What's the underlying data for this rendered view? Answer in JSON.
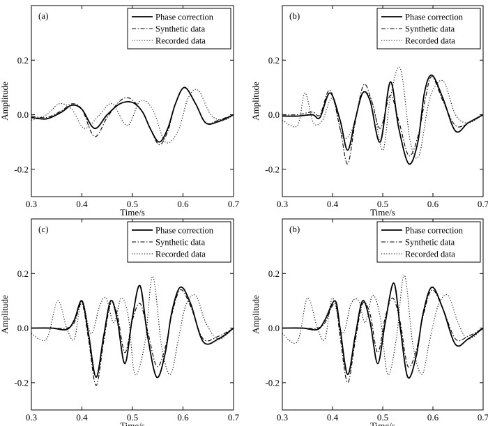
{
  "chart_data": [
    {
      "type": "line",
      "panel_label": "(a)",
      "xlabel": "Time/s",
      "ylabel": "Amplitude",
      "xlim": [
        0.3,
        0.7
      ],
      "ylim": [
        -0.3,
        0.4
      ],
      "xticks": [
        0.3,
        0.4,
        0.5,
        0.6,
        0.7
      ],
      "xtick_labels": [
        "0.3",
        "0.4",
        "0.5",
        "0.6",
        "0.7"
      ],
      "yticks": [
        -0.2,
        0.0,
        0.2
      ],
      "ytick_labels": [
        "-0.2",
        "0.0",
        "0.2"
      ],
      "legend_position": "top-right",
      "series": [
        {
          "name": "Phase correction",
          "style": "solid",
          "x": [
            0.3,
            0.33,
            0.36,
            0.38,
            0.4,
            0.425,
            0.45,
            0.475,
            0.5,
            0.52,
            0.535,
            0.553,
            0.57,
            0.585,
            0.603,
            0.625,
            0.645,
            0.67,
            0.7
          ],
          "y": [
            -0.01,
            -0.015,
            0.01,
            0.035,
            0.02,
            -0.05,
            0.0,
            0.04,
            0.045,
            0.01,
            -0.05,
            -0.1,
            -0.05,
            0.04,
            0.1,
            0.04,
            -0.03,
            -0.025,
            0.0
          ]
        },
        {
          "name": "Synthetic data",
          "style": "dashdot",
          "x": [
            0.3,
            0.33,
            0.36,
            0.38,
            0.4,
            0.425,
            0.45,
            0.475,
            0.495,
            0.52,
            0.535,
            0.553,
            0.57,
            0.585,
            0.603,
            0.625,
            0.645,
            0.67,
            0.7
          ],
          "y": [
            -0.005,
            -0.01,
            0.015,
            0.04,
            0.02,
            -0.08,
            -0.01,
            0.05,
            0.06,
            0.01,
            -0.05,
            -0.11,
            -0.06,
            0.04,
            0.1,
            0.04,
            -0.03,
            -0.02,
            0.0
          ]
        },
        {
          "name": "Recorded data",
          "style": "dotted",
          "x": [
            0.3,
            0.33,
            0.355,
            0.38,
            0.405,
            0.435,
            0.46,
            0.49,
            0.515,
            0.54,
            0.565,
            0.59,
            0.61,
            0.63,
            0.655,
            0.68,
            0.7
          ],
          "y": [
            -0.02,
            0.0,
            0.04,
            0.02,
            -0.05,
            0.0,
            0.04,
            -0.04,
            0.05,
            0.02,
            -0.1,
            -0.06,
            0.06,
            0.09,
            0.0,
            -0.02,
            0.0
          ]
        }
      ]
    },
    {
      "type": "line",
      "panel_label": "(b)",
      "xlabel": "Time/s",
      "ylabel": "Amplitude",
      "xlim": [
        0.3,
        0.7
      ],
      "ylim": [
        -0.3,
        0.4
      ],
      "xticks": [
        0.3,
        0.4,
        0.5,
        0.6,
        0.7
      ],
      "xtick_labels": [
        "0.3",
        "0.4",
        "0.5",
        "0.6",
        "0.7"
      ],
      "yticks": [
        -0.2,
        0.0,
        0.2
      ],
      "ytick_labels": [
        "-0.2",
        "0.0",
        "0.2"
      ],
      "legend_position": "top-right",
      "series": [
        {
          "name": "Phase correction",
          "style": "solid",
          "x": [
            0.3,
            0.33,
            0.36,
            0.375,
            0.395,
            0.415,
            0.43,
            0.445,
            0.46,
            0.475,
            0.495,
            0.515,
            0.532,
            0.552,
            0.57,
            0.583,
            0.598,
            0.62,
            0.645,
            0.67,
            0.7
          ],
          "y": [
            -0.005,
            -0.005,
            0.0,
            -0.01,
            0.08,
            -0.02,
            -0.13,
            -0.02,
            0.08,
            0.05,
            -0.1,
            0.12,
            -0.05,
            -0.18,
            -0.1,
            0.08,
            0.145,
            0.06,
            -0.06,
            -0.03,
            0.0
          ]
        },
        {
          "name": "Synthetic data",
          "style": "dashdot",
          "x": [
            0.3,
            0.33,
            0.36,
            0.375,
            0.395,
            0.415,
            0.43,
            0.445,
            0.462,
            0.478,
            0.495,
            0.515,
            0.533,
            0.552,
            0.57,
            0.585,
            0.598,
            0.62,
            0.645,
            0.67,
            0.7
          ],
          "y": [
            0.0,
            0.0,
            0.01,
            0.0,
            0.09,
            -0.05,
            -0.18,
            -0.03,
            0.11,
            0.05,
            -0.05,
            0.07,
            -0.03,
            -0.15,
            -0.08,
            0.06,
            0.14,
            0.05,
            -0.04,
            -0.03,
            0.0
          ]
        },
        {
          "name": "Recorded data",
          "style": "dotted",
          "x": [
            0.3,
            0.33,
            0.345,
            0.362,
            0.38,
            0.4,
            0.42,
            0.44,
            0.46,
            0.48,
            0.5,
            0.515,
            0.535,
            0.555,
            0.572,
            0.59,
            0.603,
            0.622,
            0.645,
            0.67,
            0.7
          ],
          "y": [
            -0.02,
            -0.04,
            0.08,
            -0.03,
            -0.02,
            0.06,
            -0.08,
            -0.05,
            0.08,
            0.04,
            -0.13,
            0.06,
            0.17,
            -0.1,
            -0.15,
            0.03,
            0.1,
            0.12,
            0.0,
            -0.03,
            0.0
          ]
        }
      ]
    },
    {
      "type": "line",
      "panel_label": "(c)",
      "xlabel": "Time/s",
      "ylabel": "Amplitude",
      "xlim": [
        0.3,
        0.7
      ],
      "ylim": [
        -0.3,
        0.4
      ],
      "xticks": [
        0.3,
        0.4,
        0.5,
        0.6,
        0.7
      ],
      "xtick_labels": [
        "0.3",
        "0.4",
        "0.5",
        "0.6",
        "0.7"
      ],
      "yticks": [
        -0.2,
        0.0,
        0.2
      ],
      "ytick_labels": [
        "-0.2",
        "0.0",
        "0.2"
      ],
      "legend_position": "top-right",
      "series": [
        {
          "name": "Phase correction",
          "style": "solid",
          "x": [
            0.3,
            0.34,
            0.37,
            0.385,
            0.4,
            0.413,
            0.428,
            0.443,
            0.457,
            0.47,
            0.485,
            0.5,
            0.515,
            0.53,
            0.548,
            0.565,
            0.578,
            0.595,
            0.615,
            0.64,
            0.67,
            0.7
          ],
          "y": [
            0.0,
            0.0,
            -0.005,
            0.03,
            0.1,
            -0.02,
            -0.18,
            -0.03,
            0.1,
            0.03,
            -0.13,
            0.04,
            0.155,
            -0.03,
            -0.18,
            -0.09,
            0.06,
            0.15,
            0.09,
            -0.05,
            -0.04,
            0.0
          ]
        },
        {
          "name": "Synthetic data",
          "style": "dashdot",
          "x": [
            0.3,
            0.34,
            0.37,
            0.385,
            0.4,
            0.413,
            0.428,
            0.443,
            0.457,
            0.47,
            0.485,
            0.5,
            0.515,
            0.53,
            0.548,
            0.565,
            0.578,
            0.595,
            0.615,
            0.64,
            0.67,
            0.7
          ],
          "y": [
            0.0,
            0.0,
            0.0,
            0.02,
            0.09,
            -0.04,
            -0.21,
            -0.05,
            0.09,
            0.05,
            -0.09,
            0.03,
            0.09,
            -0.01,
            -0.14,
            -0.07,
            0.05,
            0.14,
            0.08,
            -0.04,
            -0.03,
            0.0
          ]
        },
        {
          "name": "Recorded data",
          "style": "dotted",
          "x": [
            0.3,
            0.33,
            0.352,
            0.37,
            0.385,
            0.4,
            0.418,
            0.435,
            0.448,
            0.463,
            0.478,
            0.492,
            0.505,
            0.525,
            0.54,
            0.558,
            0.575,
            0.59,
            0.605,
            0.625,
            0.645,
            0.67,
            0.7
          ],
          "y": [
            -0.02,
            -0.04,
            0.1,
            0.0,
            -0.04,
            0.1,
            -0.02,
            0.08,
            0.11,
            0.02,
            0.11,
            0.04,
            -0.17,
            -0.05,
            0.19,
            -0.07,
            -0.17,
            -0.05,
            0.08,
            0.12,
            0.02,
            -0.04,
            0.0
          ]
        }
      ]
    },
    {
      "type": "line",
      "panel_label": "(b)",
      "xlabel": "Time/s",
      "ylabel": "Amplitude",
      "xlim": [
        0.3,
        0.7
      ],
      "ylim": [
        -0.3,
        0.4
      ],
      "xticks": [
        0.3,
        0.4,
        0.5,
        0.6,
        0.7
      ],
      "xtick_labels": [
        "0.3",
        "0.4",
        "0.5",
        "0.6",
        "0.7"
      ],
      "yticks": [
        -0.2,
        0.0,
        0.2
      ],
      "ytick_labels": [
        "-0.2",
        "0.0",
        "0.2"
      ],
      "legend_position": "top-right",
      "series": [
        {
          "name": "Phase correction",
          "style": "solid",
          "x": [
            0.3,
            0.34,
            0.37,
            0.385,
            0.405,
            0.415,
            0.43,
            0.445,
            0.46,
            0.475,
            0.49,
            0.505,
            0.522,
            0.535,
            0.55,
            0.567,
            0.58,
            0.598,
            0.62,
            0.645,
            0.67,
            0.7
          ],
          "y": [
            0.0,
            0.0,
            -0.005,
            0.03,
            0.1,
            0.0,
            -0.17,
            -0.03,
            0.1,
            0.02,
            -0.13,
            0.02,
            0.165,
            0.0,
            -0.18,
            -0.1,
            0.05,
            0.15,
            0.07,
            -0.06,
            -0.04,
            0.0
          ]
        },
        {
          "name": "Synthetic data",
          "style": "dashdot",
          "x": [
            0.3,
            0.34,
            0.37,
            0.385,
            0.405,
            0.415,
            0.43,
            0.445,
            0.46,
            0.475,
            0.49,
            0.505,
            0.52,
            0.535,
            0.55,
            0.567,
            0.58,
            0.598,
            0.62,
            0.645,
            0.67,
            0.7
          ],
          "y": [
            0.0,
            0.0,
            0.0,
            0.02,
            0.09,
            -0.03,
            -0.2,
            -0.05,
            0.09,
            0.05,
            -0.09,
            0.04,
            0.11,
            0.02,
            -0.14,
            -0.08,
            0.04,
            0.14,
            0.07,
            -0.04,
            -0.03,
            0.0
          ]
        },
        {
          "name": "Recorded data",
          "style": "dotted",
          "x": [
            0.3,
            0.33,
            0.35,
            0.37,
            0.385,
            0.4,
            0.42,
            0.437,
            0.452,
            0.465,
            0.48,
            0.495,
            0.51,
            0.527,
            0.543,
            0.56,
            0.578,
            0.593,
            0.61,
            0.63,
            0.65,
            0.67,
            0.7
          ],
          "y": [
            -0.02,
            -0.05,
            0.11,
            0.0,
            -0.04,
            0.11,
            -0.02,
            0.09,
            0.1,
            0.02,
            0.12,
            0.04,
            -0.17,
            -0.04,
            0.195,
            -0.06,
            -0.17,
            -0.05,
            0.08,
            0.12,
            0.02,
            -0.04,
            0.0
          ]
        }
      ]
    }
  ]
}
